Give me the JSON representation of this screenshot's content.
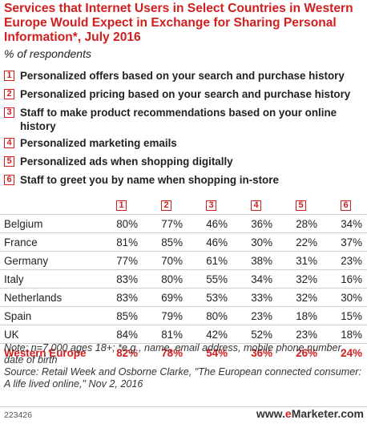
{
  "chart_data": {
    "type": "table",
    "title": "Services that Internet Users in Select Countries in Western Europe Would Expect in Exchange for Sharing Personal Information*, July 2016",
    "subtitle": "% of respondents",
    "legend": [
      {
        "num": "1",
        "label": "Personalized offers based on your search and purchase history"
      },
      {
        "num": "2",
        "label": "Personalized pricing based on your search and purchase history"
      },
      {
        "num": "3",
        "label": "Staff to make product recommendations based on your online history"
      },
      {
        "num": "4",
        "label": "Personalized marketing emails"
      },
      {
        "num": "5",
        "label": "Personalized ads when shopping digitally"
      },
      {
        "num": "6",
        "label": "Staff to greet you by name when shopping in-store"
      }
    ],
    "columns": [
      "1",
      "2",
      "3",
      "4",
      "5",
      "6"
    ],
    "rows": [
      {
        "name": "Belgium",
        "values": [
          "80%",
          "77%",
          "46%",
          "36%",
          "28%",
          "34%"
        ]
      },
      {
        "name": "France",
        "values": [
          "81%",
          "85%",
          "46%",
          "30%",
          "22%",
          "37%"
        ]
      },
      {
        "name": "Germany",
        "values": [
          "77%",
          "70%",
          "61%",
          "38%",
          "31%",
          "23%"
        ]
      },
      {
        "name": "Italy",
        "values": [
          "83%",
          "80%",
          "55%",
          "34%",
          "32%",
          "16%"
        ]
      },
      {
        "name": "Netherlands",
        "values": [
          "83%",
          "69%",
          "53%",
          "33%",
          "32%",
          "30%"
        ]
      },
      {
        "name": "Spain",
        "values": [
          "85%",
          "79%",
          "80%",
          "23%",
          "18%",
          "15%"
        ]
      },
      {
        "name": "UK",
        "values": [
          "84%",
          "81%",
          "42%",
          "52%",
          "23%",
          "18%"
        ]
      },
      {
        "name": "Western Europe",
        "values": [
          "82%",
          "78%",
          "54%",
          "36%",
          "26%",
          "24%"
        ]
      }
    ],
    "note": "Note: n=7,000 ages 18+; *e.g., name, email address, mobile phone number, date of birth",
    "source": "Source: Retail Week and Osborne Clarke, \"The European connected consumer: A life lived online,\" Nov 2, 2016",
    "accent_color": "#d21e1e"
  },
  "footer": {
    "chart_id": "223426",
    "brand_prefix": "www.",
    "brand_e": "e",
    "brand_rest": "Marketer",
    "brand_suffix": ".com"
  }
}
